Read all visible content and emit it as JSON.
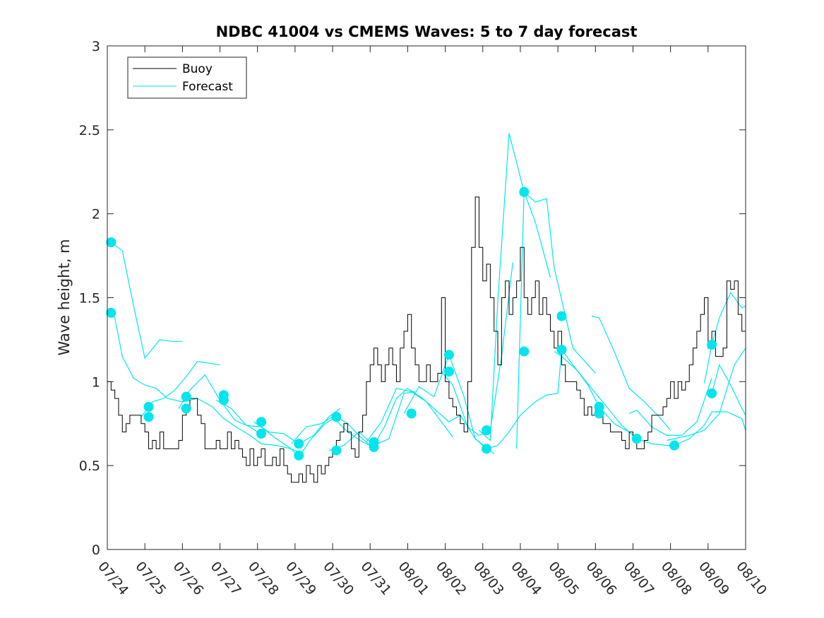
{
  "chart_data": {
    "type": "line",
    "title": "NDBC 41004 vs CMEMS Waves: 5 to 7 day forecast",
    "xlabel": "",
    "ylabel": "Wave height, m",
    "x_tick_labels": [
      "07/24",
      "07/25",
      "07/26",
      "07/27",
      "07/28",
      "07/29",
      "07/30",
      "07/31",
      "08/01",
      "08/02",
      "08/03",
      "08/04",
      "08/05",
      "08/06",
      "08/07",
      "08/08",
      "08/09",
      "08/10"
    ],
    "xlim": [
      0,
      17
    ],
    "ylim": [
      0,
      3
    ],
    "y_ticks": [
      0,
      0.5,
      1,
      1.5,
      2,
      2.5,
      3
    ],
    "y_tick_labels": [
      "0",
      "0.5",
      "1",
      "1.5",
      "2",
      "2.5",
      "3"
    ],
    "legend": {
      "position": "top-left",
      "entries": [
        "Buoy",
        "Forecast"
      ]
    },
    "colors": {
      "buoy": "#000000",
      "forecast": "#00e5ee",
      "axes": "#262626"
    },
    "series": [
      {
        "name": "Buoy",
        "color": "#000000",
        "x": [
          0,
          0.1,
          0.2,
          0.3,
          0.4,
          0.5,
          0.6,
          0.7,
          0.8,
          0.9,
          1.0,
          1.1,
          1.2,
          1.3,
          1.4,
          1.5,
          1.6,
          1.7,
          1.8,
          1.9,
          2.0,
          2.1,
          2.2,
          2.3,
          2.4,
          2.5,
          2.6,
          2.7,
          2.8,
          2.9,
          3.0,
          3.1,
          3.2,
          3.3,
          3.4,
          3.5,
          3.6,
          3.7,
          3.8,
          3.9,
          4.0,
          4.1,
          4.2,
          4.3,
          4.4,
          4.5,
          4.6,
          4.7,
          4.8,
          4.9,
          5.0,
          5.1,
          5.2,
          5.3,
          5.4,
          5.5,
          5.6,
          5.7,
          5.8,
          5.9,
          6.0,
          6.1,
          6.2,
          6.3,
          6.4,
          6.5,
          6.6,
          6.7,
          6.8,
          6.9,
          7.0,
          7.1,
          7.2,
          7.3,
          7.4,
          7.5,
          7.6,
          7.7,
          7.8,
          7.9,
          8.0,
          8.1,
          8.2,
          8.3,
          8.4,
          8.5,
          8.6,
          8.7,
          8.8,
          8.9,
          9.0,
          9.1,
          9.2,
          9.3,
          9.4,
          9.5,
          9.6,
          9.7,
          9.8,
          9.9,
          10.0,
          10.1,
          10.2,
          10.3,
          10.4,
          10.5,
          10.6,
          10.7,
          10.8,
          10.9,
          11.0,
          11.1,
          11.2,
          11.3,
          11.4,
          11.5,
          11.6,
          11.7,
          11.8,
          11.9,
          12.0,
          12.1,
          12.2,
          12.3,
          12.4,
          12.5,
          12.6,
          12.7,
          12.8,
          12.9,
          13.0,
          13.1,
          13.2,
          13.3,
          13.4,
          13.5,
          13.6,
          13.7,
          13.8,
          13.9,
          14.0,
          14.1,
          14.2,
          14.3,
          14.4,
          14.5,
          14.6,
          14.7,
          14.8,
          14.9,
          15.0,
          15.1,
          15.2,
          15.3,
          15.4,
          15.5,
          15.6,
          15.7,
          15.8,
          15.9,
          16.0,
          16.1,
          16.2,
          16.3,
          16.4,
          16.5,
          16.6,
          16.7,
          16.8,
          16.9,
          17.0
        ],
        "values": [
          1.0,
          0.95,
          0.9,
          0.8,
          0.7,
          0.75,
          0.8,
          0.8,
          0.8,
          0.75,
          0.7,
          0.6,
          0.65,
          0.6,
          0.7,
          0.6,
          0.6,
          0.6,
          0.6,
          0.65,
          0.8,
          0.85,
          0.9,
          0.9,
          0.8,
          0.75,
          0.6,
          0.6,
          0.6,
          0.65,
          0.6,
          0.6,
          0.7,
          0.6,
          0.65,
          0.6,
          0.55,
          0.5,
          0.6,
          0.5,
          0.55,
          0.6,
          0.5,
          0.5,
          0.55,
          0.5,
          0.6,
          0.5,
          0.45,
          0.4,
          0.4,
          0.45,
          0.4,
          0.5,
          0.45,
          0.4,
          0.5,
          0.45,
          0.5,
          0.55,
          0.6,
          0.65,
          0.7,
          0.75,
          0.7,
          0.6,
          0.55,
          0.7,
          0.8,
          1.0,
          1.1,
          1.2,
          1.1,
          1.0,
          1.1,
          1.2,
          1.1,
          1.0,
          1.2,
          1.3,
          1.4,
          1.2,
          1.1,
          1.0,
          1.0,
          1.1,
          1.0,
          1.0,
          1.05,
          1.5,
          1.0,
          0.9,
          0.85,
          0.8,
          0.75,
          0.7,
          1.0,
          1.8,
          2.1,
          1.8,
          1.6,
          1.7,
          1.5,
          1.3,
          1.1,
          1.5,
          1.6,
          1.4,
          1.5,
          1.6,
          1.8,
          1.5,
          1.4,
          1.5,
          1.6,
          1.4,
          1.5,
          1.4,
          1.3,
          1.2,
          1.3,
          1.1,
          1.0,
          1.0,
          1.0,
          0.95,
          0.9,
          0.8,
          0.85,
          0.8,
          0.85,
          0.8,
          0.75,
          0.75,
          0.7,
          0.7,
          0.7,
          0.65,
          0.6,
          0.7,
          0.65,
          0.6,
          0.6,
          0.65,
          0.7,
          0.8,
          0.8,
          0.8,
          0.85,
          0.9,
          1.0,
          0.9,
          1.0,
          0.95,
          1.0,
          1.1,
          1.2,
          1.3,
          1.4,
          1.5,
          1.2,
          1.3,
          1.15,
          1.15,
          1.2,
          1.6,
          1.55,
          1.6,
          1.4,
          1.3,
          1.25
        ]
      },
      {
        "name": "Forecast",
        "color": "#00e5ee",
        "x": [
          0.1,
          0.2,
          0.4,
          0.7,
          1.0,
          1.3,
          1.6,
          2.0,
          2.4,
          2.8,
          3.1,
          3.5,
          3.8,
          4.1,
          4.5,
          4.9,
          5.1,
          5.4,
          5.8,
          6.1,
          6.4,
          6.7,
          7.0,
          7.1,
          7.4,
          7.7,
          8.0,
          8.4,
          8.8,
          9.1,
          9.4,
          9.8,
          10.1,
          10.4,
          10.7,
          11.0,
          11.1,
          11.4,
          11.7,
          12.0,
          12.1,
          12.4,
          12.8,
          13.1,
          13.5,
          13.9,
          14.1,
          14.5,
          14.9,
          15.1,
          15.5,
          15.9,
          16.1,
          16.5,
          16.9,
          17.0
        ],
        "values": [
          1.41,
          1.38,
          1.15,
          1.02,
          0.98,
          0.96,
          0.9,
          0.88,
          0.9,
          0.85,
          0.78,
          0.72,
          0.68,
          0.63,
          0.62,
          0.6,
          0.55,
          0.65,
          0.75,
          0.79,
          0.75,
          0.68,
          0.62,
          0.62,
          0.74,
          0.9,
          0.96,
          0.9,
          0.82,
          0.76,
          0.8,
          0.66,
          0.6,
          0.62,
          0.7,
          0.8,
          0.82,
          0.88,
          0.92,
          0.93,
          1.19,
          1.1,
          0.98,
          0.85,
          0.75,
          0.7,
          0.66,
          0.63,
          0.62,
          0.62,
          0.66,
          0.74,
          0.82,
          0.82,
          0.78,
          0.71
        ]
      }
    ],
    "forecast_runs": [
      {
        "x": [
          0.1,
          0.4,
          0.7,
          1.0,
          1.4,
          1.7,
          2.0
        ],
        "values": [
          1.83,
          1.78,
          1.45,
          1.14,
          1.25,
          1.24,
          1.24
        ]
      },
      {
        "x": [
          0.9,
          1.2,
          1.5,
          1.8,
          2.1,
          2.4,
          3.0
        ],
        "values": [
          0.79,
          0.88,
          0.9,
          0.95,
          1.03,
          1.12,
          1.1
        ]
      },
      {
        "x": [
          1.9,
          2.2,
          2.6,
          3.0,
          3.4,
          3.8,
          4.2
        ],
        "values": [
          0.84,
          0.95,
          1.04,
          0.89,
          0.77,
          0.73,
          0.67
        ]
      },
      {
        "x": [
          2.9,
          3.3,
          3.7,
          4.1,
          4.5,
          4.9,
          5.2
        ],
        "values": [
          0.89,
          0.84,
          0.74,
          0.73,
          0.66,
          0.6,
          0.57
        ]
      },
      {
        "x": [
          3.9,
          4.3,
          4.7,
          5.1,
          5.5,
          5.9,
          6.2
        ],
        "values": [
          0.76,
          0.7,
          0.69,
          0.63,
          0.68,
          0.79,
          0.84
        ]
      },
      {
        "x": [
          4.9,
          5.3,
          5.7,
          6.0,
          6.4,
          6.8,
          7.2
        ],
        "values": [
          0.63,
          0.73,
          0.75,
          0.79,
          0.7,
          0.64,
          0.6
        ]
      },
      {
        "x": [
          5.9,
          6.3,
          6.7,
          7.1,
          7.5,
          7.9,
          8.2
        ],
        "values": [
          0.59,
          0.62,
          0.7,
          0.62,
          0.66,
          0.93,
          0.94
        ]
      },
      {
        "x": [
          6.9,
          7.3,
          7.7,
          8.1,
          8.5,
          8.9,
          9.2
        ],
        "values": [
          0.64,
          0.76,
          0.96,
          0.94,
          0.88,
          0.76,
          0.67
        ]
      },
      {
        "x": [
          7.9,
          8.3,
          8.7,
          9.1,
          9.5,
          9.8,
          10.3
        ],
        "values": [
          0.81,
          0.97,
          0.91,
          1.16,
          0.91,
          0.66,
          0.57
        ]
      },
      {
        "x": [
          8.9,
          9.2,
          9.6,
          9.9,
          10.2,
          10.5,
          10.8
        ],
        "values": [
          1.06,
          0.98,
          0.73,
          0.68,
          0.71,
          1.15,
          1.71
        ]
      },
      {
        "x": [
          9.9,
          10.2,
          10.4,
          10.7,
          11.1,
          11.4,
          11.8
        ],
        "values": [
          0.71,
          0.65,
          1.48,
          2.48,
          2.13,
          1.95,
          1.62
        ]
      },
      {
        "x": [
          10.9,
          11.1,
          11.4,
          11.7,
          11.9,
          12.4,
          13.0
        ],
        "values": [
          0.6,
          2.13,
          2.07,
          2.09,
          1.68,
          1.2,
          1.05
        ]
      },
      {
        "x": [
          11.9,
          12.1,
          12.5,
          12.9,
          13.3,
          13.7,
          14.0
        ],
        "values": [
          1.18,
          1.15,
          1.07,
          0.96,
          0.85,
          0.74,
          0.68
        ]
      },
      {
        "x": [
          12.9,
          13.1,
          13.5,
          13.9,
          14.3,
          14.7,
          15.0
        ],
        "values": [
          1.39,
          1.38,
          1.18,
          0.96,
          0.88,
          0.79,
          0.71
        ]
      },
      {
        "x": [
          13.9,
          14.1,
          14.5,
          14.9,
          15.3,
          15.7,
          16.1
        ],
        "values": [
          0.81,
          0.83,
          0.73,
          0.68,
          0.68,
          0.76,
          1.02
        ]
      },
      {
        "x": [
          14.9,
          15.1,
          15.5,
          15.9,
          16.3,
          16.7,
          17.0
        ],
        "values": [
          0.65,
          0.66,
          0.68,
          0.71,
          0.81,
          1.1,
          1.2
        ]
      },
      {
        "x": [
          15.9,
          16.1,
          16.3,
          16.6,
          16.9,
          17.0
        ],
        "values": [
          0.99,
          1.22,
          1.38,
          1.53,
          1.44,
          1.45
        ]
      },
      {
        "x": [
          16.1,
          16.3,
          16.6,
          16.9,
          17.0
        ],
        "values": [
          0.93,
          1.1,
          0.98,
          0.84,
          0.8
        ]
      }
    ],
    "forecast_markers": {
      "x": [
        0.1,
        0.1,
        1.1,
        1.1,
        2.1,
        2.1,
        3.1,
        3.1,
        4.1,
        4.1,
        5.1,
        5.1,
        6.1,
        6.1,
        7.1,
        7.1,
        8.1,
        9.1,
        9.1,
        10.1,
        10.1,
        11.1,
        11.1,
        12.1,
        12.1,
        13.1,
        13.1,
        14.1,
        15.1,
        16.1,
        16.1
      ],
      "values": [
        1.83,
        1.41,
        0.85,
        0.79,
        0.91,
        0.84,
        0.92,
        0.89,
        0.76,
        0.69,
        0.63,
        0.56,
        0.79,
        0.59,
        0.64,
        0.61,
        0.81,
        1.16,
        1.06,
        0.71,
        0.6,
        2.13,
        1.18,
        1.39,
        1.19,
        0.85,
        0.81,
        0.66,
        0.62,
        1.22,
        0.93
      ]
    }
  }
}
